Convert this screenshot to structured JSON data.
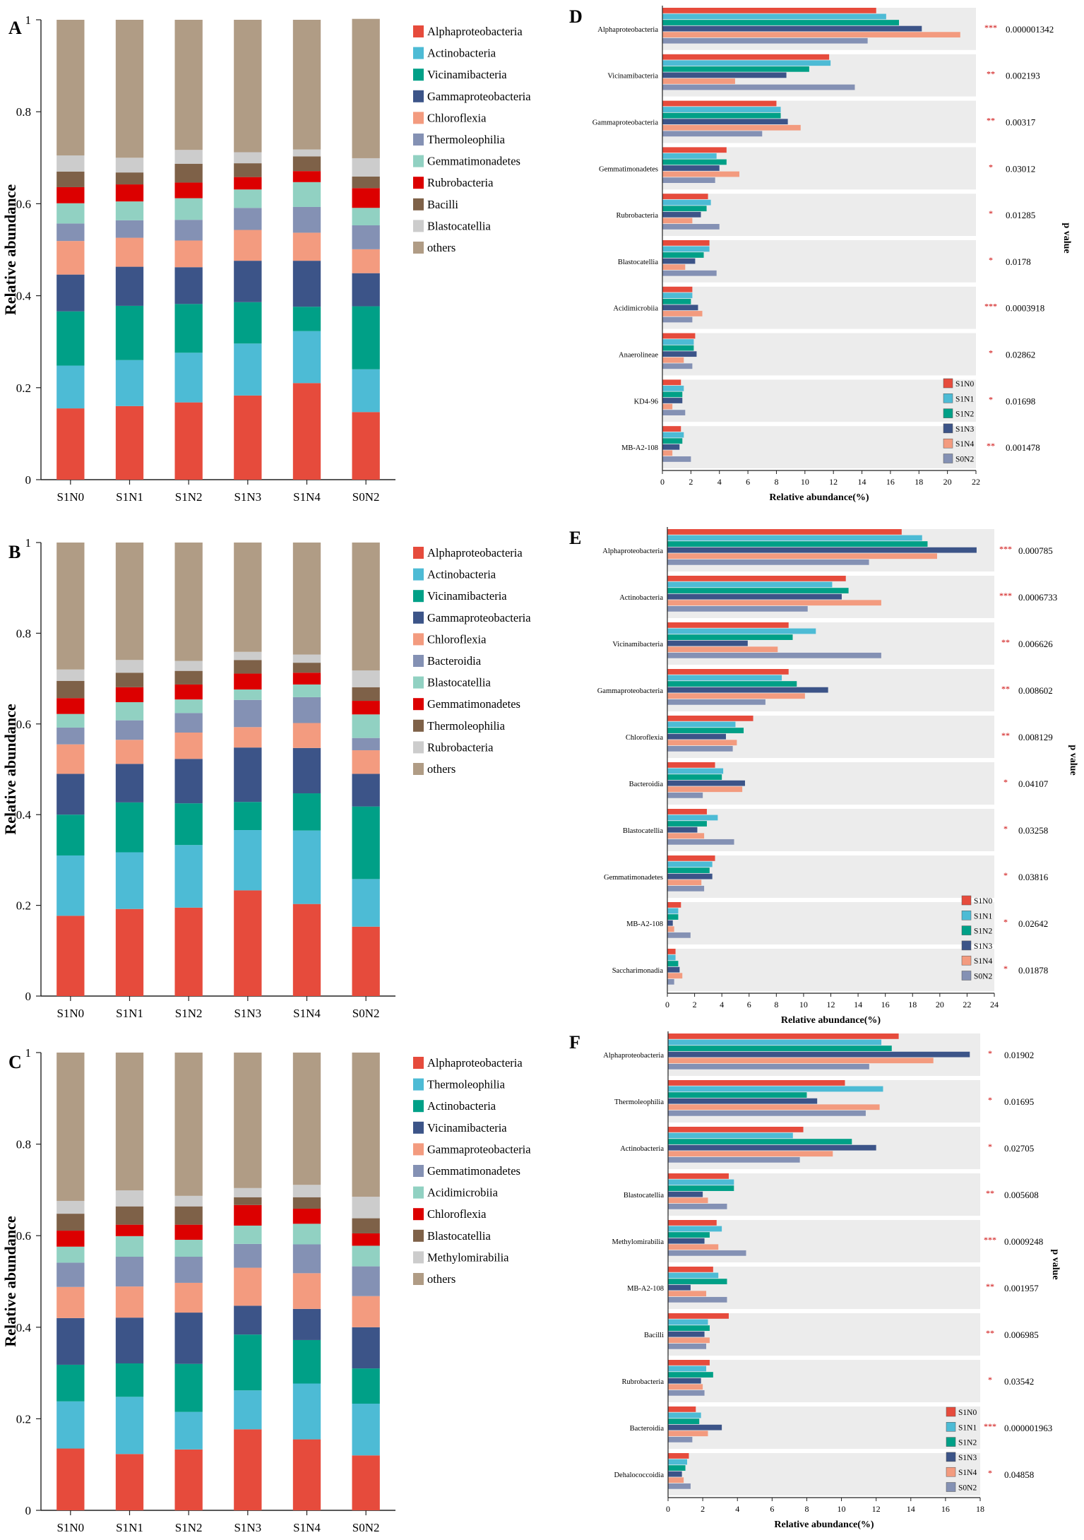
{
  "colors": {
    "S1N0": "#e64b3c",
    "S1N1": "#4dbbd5",
    "S1N2": "#00a087",
    "S1N3": "#3c5488",
    "S1N4": "#f39b7f",
    "S0N2": "#8491b4",
    "stack": [
      "#e64b3c",
      "#4dbbd5",
      "#00a087",
      "#3c5488",
      "#f39b7f",
      "#8491b4",
      "#91d1c2",
      "#dc0000",
      "#7e6148",
      "#cccccc",
      "#b09c85"
    ],
    "star": "#cc0000",
    "band": "#ececec"
  },
  "chart_data": [
    {
      "panel": "A",
      "type": "bar",
      "stacked": true,
      "categories": [
        "S1N0",
        "S1N1",
        "S1N2",
        "S1N3",
        "S1N4",
        "S0N2"
      ],
      "ylabel": "Relative abundance",
      "ylim": [
        0,
        1
      ],
      "yticks": [
        "0",
        "0.2",
        "0.4",
        "0.6",
        "0.8",
        "1"
      ],
      "series": [
        {
          "name": "Alphaproteobacteria",
          "values": [
            0.155,
            0.16,
            0.168,
            0.183,
            0.21,
            0.147
          ]
        },
        {
          "name": "Actinobacteria",
          "values": [
            0.093,
            0.1,
            0.108,
            0.113,
            0.113,
            0.093
          ]
        },
        {
          "name": "Vicinamibacteria",
          "values": [
            0.118,
            0.118,
            0.106,
            0.09,
            0.053,
            0.137
          ]
        },
        {
          "name": "Gammaproteobacteria",
          "values": [
            0.08,
            0.085,
            0.08,
            0.09,
            0.1,
            0.072
          ]
        },
        {
          "name": "Chloroflexia",
          "values": [
            0.073,
            0.063,
            0.058,
            0.067,
            0.061,
            0.052
          ]
        },
        {
          "name": "Thermoleophilia",
          "values": [
            0.038,
            0.038,
            0.045,
            0.048,
            0.056,
            0.052
          ]
        },
        {
          "name": "Gemmatimonadetes",
          "values": [
            0.044,
            0.041,
            0.047,
            0.04,
            0.054,
            0.038
          ]
        },
        {
          "name": "Rubrobacteria",
          "values": [
            0.035,
            0.037,
            0.034,
            0.027,
            0.024,
            0.043
          ]
        },
        {
          "name": "Bacilli",
          "values": [
            0.034,
            0.026,
            0.041,
            0.03,
            0.032,
            0.025
          ]
        },
        {
          "name": "Blastocatellia",
          "values": [
            0.035,
            0.032,
            0.03,
            0.024,
            0.015,
            0.04
          ]
        },
        {
          "name": "others",
          "values": [
            0.295,
            0.3,
            0.283,
            0.288,
            0.282,
            0.303
          ]
        }
      ]
    },
    {
      "panel": "B",
      "type": "bar",
      "stacked": true,
      "categories": [
        "S1N0",
        "S1N1",
        "S1N2",
        "S1N3",
        "S1N4",
        "S0N2"
      ],
      "ylabel": "Relative abundance",
      "ylim": [
        0,
        1
      ],
      "yticks": [
        "0",
        "0.2",
        "0.4",
        "0.6",
        "0.8",
        "1"
      ],
      "series": [
        {
          "name": "Alphaproteobacteria",
          "values": [
            0.177,
            0.192,
            0.195,
            0.233,
            0.203,
            0.153
          ]
        },
        {
          "name": "Actinobacteria",
          "values": [
            0.133,
            0.125,
            0.138,
            0.133,
            0.162,
            0.105
          ]
        },
        {
          "name": "Vicinamibacteria",
          "values": [
            0.09,
            0.11,
            0.092,
            0.062,
            0.082,
            0.16
          ]
        },
        {
          "name": "Gammaproteobacteria",
          "values": [
            0.09,
            0.085,
            0.098,
            0.12,
            0.1,
            0.072
          ]
        },
        {
          "name": "Chloroflexia",
          "values": [
            0.065,
            0.053,
            0.058,
            0.045,
            0.055,
            0.052
          ]
        },
        {
          "name": "Bacteroidia",
          "values": [
            0.037,
            0.043,
            0.043,
            0.06,
            0.057,
            0.027
          ]
        },
        {
          "name": "Blastocatellia",
          "values": [
            0.03,
            0.04,
            0.03,
            0.023,
            0.028,
            0.052
          ]
        },
        {
          "name": "Gemmatimonadetes",
          "values": [
            0.035,
            0.033,
            0.033,
            0.035,
            0.026,
            0.03
          ]
        },
        {
          "name": "Thermoleophilia",
          "values": [
            0.038,
            0.032,
            0.03,
            0.03,
            0.022,
            0.03
          ]
        },
        {
          "name": "Rubrobacteria",
          "values": [
            0.025,
            0.028,
            0.022,
            0.018,
            0.018,
            0.037
          ]
        },
        {
          "name": "others",
          "values": [
            0.28,
            0.259,
            0.261,
            0.241,
            0.247,
            0.282
          ]
        }
      ]
    },
    {
      "panel": "C",
      "type": "bar",
      "stacked": true,
      "categories": [
        "S1N0",
        "S1N1",
        "S1N2",
        "S1N3",
        "S1N4",
        "S0N2"
      ],
      "ylabel": "Relative abundance",
      "ylim": [
        0,
        1
      ],
      "yticks": [
        "0",
        "0.2",
        "0.4",
        "0.6",
        "0.8",
        "1"
      ],
      "series": [
        {
          "name": "Alphaproteobacteria",
          "values": [
            0.135,
            0.123,
            0.133,
            0.177,
            0.155,
            0.12
          ]
        },
        {
          "name": "Thermoleophilia",
          "values": [
            0.103,
            0.125,
            0.082,
            0.085,
            0.122,
            0.113
          ]
        },
        {
          "name": "Actinobacteria",
          "values": [
            0.08,
            0.073,
            0.105,
            0.122,
            0.095,
            0.077
          ]
        },
        {
          "name": "Vicinamibacteria",
          "values": [
            0.102,
            0.1,
            0.112,
            0.063,
            0.068,
            0.09
          ]
        },
        {
          "name": "Gammaproteobacteria",
          "values": [
            0.068,
            0.068,
            0.065,
            0.083,
            0.078,
            0.068
          ]
        },
        {
          "name": "Gemmatimonadetes",
          "values": [
            0.053,
            0.065,
            0.057,
            0.052,
            0.063,
            0.065
          ]
        },
        {
          "name": "Acidimicrobiia",
          "values": [
            0.035,
            0.045,
            0.037,
            0.04,
            0.045,
            0.045
          ]
        },
        {
          "name": "Chloroflexia",
          "values": [
            0.035,
            0.025,
            0.033,
            0.045,
            0.033,
            0.027
          ]
        },
        {
          "name": "Blastocatellia",
          "values": [
            0.037,
            0.04,
            0.04,
            0.017,
            0.025,
            0.033
          ]
        },
        {
          "name": "Methylomirabilia",
          "values": [
            0.028,
            0.035,
            0.023,
            0.02,
            0.027,
            0.047
          ]
        },
        {
          "name": "others",
          "values": [
            0.324,
            0.301,
            0.313,
            0.296,
            0.289,
            0.315
          ]
        }
      ]
    },
    {
      "panel": "D",
      "type": "bar",
      "orientation": "horizontal",
      "categories": [
        "Alphaproteobacteria",
        "Vicinamibacteria",
        "Gammaproteobacteria",
        "Gemmatimonadetes",
        "Rubrobacteria",
        "Blastocatellia",
        "Acidimicrobiia",
        "Anaerolineae",
        "KD4-96",
        "MB-A2-108"
      ],
      "xlabel": "Relative abundance(%)",
      "xlim": [
        0,
        22
      ],
      "xticks": [
        "0",
        "2",
        "4",
        "6",
        "8",
        "10",
        "12",
        "14",
        "16",
        "18",
        "20",
        "22"
      ],
      "side_label": "p value",
      "stars": [
        "***",
        "**",
        "**",
        "*",
        "*",
        "*",
        "***",
        "*",
        "*",
        "**"
      ],
      "p_values": [
        "0.000001342",
        "0.002193",
        "0.00317",
        "0.03012",
        "0.01285",
        "0.0178",
        "0.0003918",
        "0.02862",
        "0.01698",
        "0.001478"
      ],
      "series": [
        {
          "name": "S1N0",
          "values": [
            15.0,
            11.7,
            8.0,
            4.5,
            3.2,
            3.3,
            2.1,
            2.3,
            1.3,
            1.3
          ]
        },
        {
          "name": "S1N1",
          "values": [
            15.7,
            11.8,
            8.3,
            3.8,
            3.4,
            3.3,
            2.1,
            2.2,
            1.5,
            1.5
          ]
        },
        {
          "name": "S1N2",
          "values": [
            16.6,
            10.3,
            8.3,
            4.5,
            3.1,
            2.9,
            2.0,
            2.2,
            1.4,
            1.4
          ]
        },
        {
          "name": "S1N3",
          "values": [
            18.2,
            8.7,
            8.8,
            4.0,
            2.7,
            2.3,
            2.5,
            2.4,
            1.4,
            1.2
          ]
        },
        {
          "name": "S1N4",
          "values": [
            20.9,
            5.1,
            9.7,
            5.4,
            2.1,
            1.6,
            2.8,
            1.5,
            0.7,
            0.7
          ]
        },
        {
          "name": "S0N2",
          "values": [
            14.4,
            13.5,
            7.0,
            3.7,
            4.0,
            3.8,
            2.1,
            2.1,
            1.6,
            2.0
          ]
        }
      ]
    },
    {
      "panel": "E",
      "type": "bar",
      "orientation": "horizontal",
      "categories": [
        "Alphaproteobacteria",
        "Actinobacteria",
        "Vicinamibacteria",
        "Gammaproteobacteria",
        "Chloroflexia",
        "Bacteroidia",
        "Blastocatellia",
        "Gemmatimonadetes",
        "MB-A2-108",
        "Saccharimonadia"
      ],
      "xlabel": "Relative abundance(%)",
      "xlim": [
        0,
        24
      ],
      "xticks": [
        "0",
        "2",
        "4",
        "6",
        "8",
        "10",
        "12",
        "14",
        "16",
        "18",
        "20",
        "22",
        "24"
      ],
      "side_label": "p value",
      "stars": [
        "***",
        "***",
        "**",
        "**",
        "**",
        "*",
        "*",
        "*",
        "*",
        "*"
      ],
      "p_values": [
        "0.000785",
        "0.0006733",
        "0.006626",
        "0.008602",
        "0.008129",
        "0.04107",
        "0.03258",
        "0.03816",
        "0.02642",
        "0.01878"
      ],
      "series": [
        {
          "name": "S1N0",
          "values": [
            17.2,
            13.1,
            8.9,
            8.9,
            6.3,
            3.5,
            2.9,
            3.5,
            1.0,
            0.6
          ]
        },
        {
          "name": "S1N1",
          "values": [
            18.7,
            12.1,
            10.9,
            8.4,
            5.0,
            4.1,
            3.7,
            3.3,
            0.8,
            0.6
          ]
        },
        {
          "name": "S1N2",
          "values": [
            19.1,
            13.3,
            9.2,
            9.5,
            5.6,
            4.0,
            2.9,
            3.1,
            0.8,
            0.8
          ]
        },
        {
          "name": "S1N3",
          "values": [
            22.7,
            12.8,
            5.9,
            11.8,
            4.3,
            5.7,
            2.2,
            3.3,
            0.4,
            0.9
          ]
        },
        {
          "name": "S1N4",
          "values": [
            19.8,
            15.7,
            8.1,
            10.1,
            5.1,
            5.5,
            2.7,
            2.5,
            0.5,
            1.1
          ]
        },
        {
          "name": "S0N2",
          "values": [
            14.8,
            10.3,
            15.7,
            7.2,
            4.8,
            2.6,
            4.9,
            2.7,
            1.7,
            0.5
          ]
        }
      ]
    },
    {
      "panel": "F",
      "type": "bar",
      "orientation": "horizontal",
      "categories": [
        "Alphaproteobacteria",
        "Thermoleophilia",
        "Actinobacteria",
        "Blastocatellia",
        "Methylomirabilia",
        "MB-A2-108",
        "Bacilli",
        "Rubrobacteria",
        "Bacteroidia",
        "Dehalococcoidia"
      ],
      "xlabel": "Relative abundance(%)",
      "xlim": [
        0,
        18
      ],
      "xticks": [
        "0",
        "2",
        "4",
        "6",
        "8",
        "10",
        "12",
        "14",
        "16",
        "18"
      ],
      "side_label": "p value",
      "stars": [
        "*",
        "*",
        "*",
        "**",
        "***",
        "**",
        "**",
        "*",
        "***",
        "*"
      ],
      "p_values": [
        "0.01902",
        "0.01695",
        "0.02705",
        "0.005608",
        "0.0009248",
        "0.001957",
        "0.006985",
        "0.03542",
        "0.000001963",
        "0.04858"
      ],
      "series": [
        {
          "name": "S1N0",
          "values": [
            13.3,
            10.2,
            7.8,
            3.5,
            2.8,
            2.6,
            3.5,
            2.4,
            1.6,
            1.2
          ]
        },
        {
          "name": "S1N1",
          "values": [
            12.3,
            12.4,
            7.2,
            3.8,
            3.1,
            2.9,
            2.3,
            2.2,
            1.9,
            1.1
          ]
        },
        {
          "name": "S1N2",
          "values": [
            12.9,
            8.0,
            10.6,
            3.8,
            2.4,
            3.4,
            2.4,
            2.6,
            1.8,
            1.0
          ]
        },
        {
          "name": "S1N3",
          "values": [
            17.4,
            8.6,
            12.0,
            2.0,
            2.1,
            1.3,
            2.1,
            1.9,
            3.1,
            0.8
          ]
        },
        {
          "name": "S1N4",
          "values": [
            15.3,
            12.2,
            9.5,
            2.3,
            2.9,
            2.2,
            2.4,
            2.0,
            2.3,
            0.9
          ]
        },
        {
          "name": "S0N2",
          "values": [
            11.6,
            11.4,
            7.6,
            3.4,
            4.5,
            3.4,
            2.2,
            2.1,
            1.4,
            1.3
          ]
        }
      ]
    }
  ],
  "legend_groups": [
    "S1N0",
    "S1N1",
    "S1N2",
    "S1N3",
    "S1N4",
    "S0N2"
  ]
}
